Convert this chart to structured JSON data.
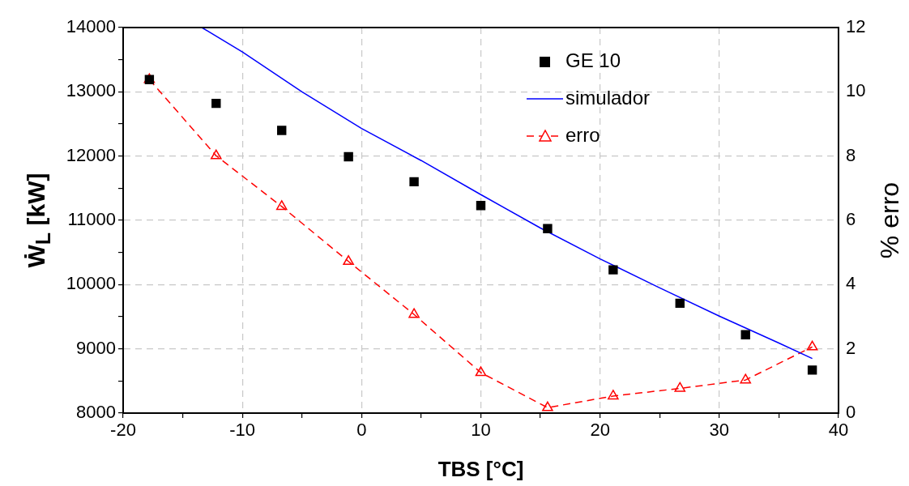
{
  "chart_data": {
    "type": "scatter",
    "xlabel": "TBS [°C]",
    "ylabel": "Ẇ$_{L}$  [kW]",
    "y2label": "% erro",
    "xlim": [
      -20,
      40
    ],
    "xticks": [
      -20,
      {
        "value": -15,
        "label": null
      },
      -10,
      {
        "value": -5,
        "label": null
      },
      0,
      {
        "value": 5,
        "label": null
      },
      10,
      {
        "value": 15,
        "label": null
      },
      20,
      {
        "value": 25,
        "label": null
      },
      30,
      {
        "value": 35,
        "label": null
      },
      40
    ],
    "ylim": [
      8000,
      14000
    ],
    "yticks": [
      8000,
      {
        "value": 8500,
        "label": null
      },
      9000,
      {
        "value": 9500,
        "label": null
      },
      10000,
      {
        "value": 10500,
        "label": null
      },
      11000,
      {
        "value": 11500,
        "label": null
      },
      12000,
      {
        "value": 12500,
        "label": null
      },
      13000,
      {
        "value": 13500,
        "label": null
      },
      14000
    ],
    "y2lim": [
      0,
      12
    ],
    "y2ticks": [
      0,
      2,
      4,
      6,
      8,
      10,
      12
    ],
    "grid": true,
    "legend": "top right",
    "series": [
      {
        "name": "GE 10",
        "marker": "square",
        "color": "#000000",
        "x": [
          -17.8,
          -12.2,
          -6.7,
          -1.1,
          4.4,
          10,
          15.6,
          21.1,
          26.7,
          32.2,
          37.8
        ],
        "values": [
          13190,
          12820,
          12400,
          11990,
          11600,
          11230,
          10870,
          10230,
          9710,
          9220,
          8670
        ]
      },
      {
        "name": "simulador",
        "type": "line",
        "marker": "none",
        "line_style": "solid",
        "color": "#0000ff",
        "x": [
          -13.4,
          -10,
          -5,
          0,
          5,
          10,
          15,
          20,
          25,
          30,
          35,
          37.8
        ],
        "values": [
          14000,
          13620,
          13000,
          12430,
          11930,
          11400,
          10880,
          10400,
          9950,
          9510,
          9090,
          8850
        ]
      },
      {
        "name": "erro",
        "type": "line",
        "axis": "y2",
        "marker": "triangle",
        "line_style": "dashed",
        "color": "#ff0000",
        "x": [
          -17.8,
          -12.2,
          -6.7,
          -1.1,
          4.4,
          10,
          15.6,
          21.1,
          26.7,
          32.2,
          37.8
        ],
        "values": [
          10.38,
          8.01,
          6.43,
          4.72,
          3.07,
          1.26,
          0.17,
          0.53,
          0.77,
          1.03,
          2.06
        ]
      }
    ]
  }
}
